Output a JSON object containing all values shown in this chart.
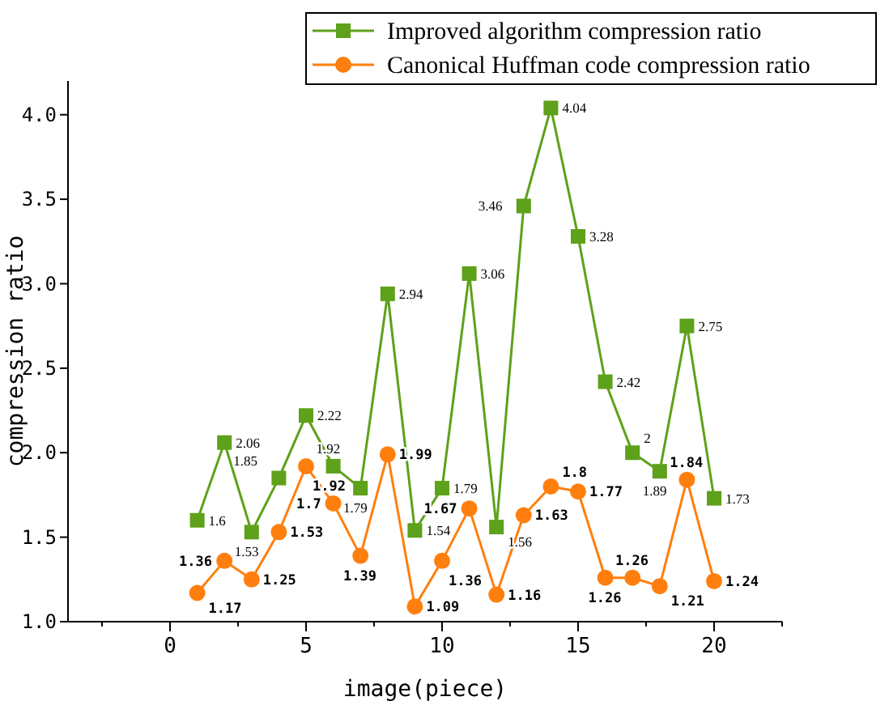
{
  "chart_data": {
    "type": "line",
    "xlabel": "image(piece)",
    "ylabel": "compression ratio",
    "x": [
      1,
      2,
      3,
      4,
      5,
      6,
      7,
      8,
      9,
      10,
      11,
      12,
      13,
      14,
      15,
      16,
      17,
      18,
      19,
      20
    ],
    "series": [
      {
        "name": "Improved algorithm compression ratio",
        "color": "#5ea11a",
        "marker": "square",
        "values": [
          1.6,
          2.06,
          1.53,
          1.85,
          2.22,
          1.92,
          1.79,
          2.94,
          1.54,
          1.79,
          3.06,
          1.56,
          3.46,
          4.04,
          3.28,
          2.42,
          2,
          1.89,
          2.75,
          1.73
        ]
      },
      {
        "name": "Canonical Huffman code compression ratio",
        "color": "#ff7f0e",
        "marker": "circle",
        "values": [
          1.17,
          1.36,
          1.25,
          1.53,
          1.92,
          1.7,
          1.39,
          1.99,
          1.09,
          1.36,
          1.67,
          1.16,
          1.63,
          1.8,
          1.77,
          1.26,
          1.26,
          1.21,
          1.84,
          1.24
        ]
      }
    ],
    "xlim": [
      -3.75,
      22.5
    ],
    "xticks": [
      {
        "value": -2.5,
        "label": null
      },
      0,
      {
        "value": 2.5,
        "label": null
      },
      5,
      {
        "value": 7.5,
        "label": null
      },
      10,
      {
        "value": 12.5,
        "label": null
      },
      15,
      {
        "value": 17.5,
        "label": null
      },
      20,
      {
        "value": 22.5,
        "label": null
      }
    ],
    "ylim": [
      1,
      4.2
    ],
    "yticks": [
      {
        "value": 1,
        "label": "1.0"
      },
      {
        "value": 1.5,
        "label": "1.5"
      },
      {
        "value": 2,
        "label": "2.0"
      },
      {
        "value": 2.5,
        "label": "2.5"
      },
      {
        "value": 3,
        "label": "3.0"
      },
      {
        "value": 3.5,
        "label": "3.5"
      },
      {
        "value": 4,
        "label": "4.0"
      }
    ],
    "data_labels": true,
    "legend": "top right",
    "grid": false
  }
}
